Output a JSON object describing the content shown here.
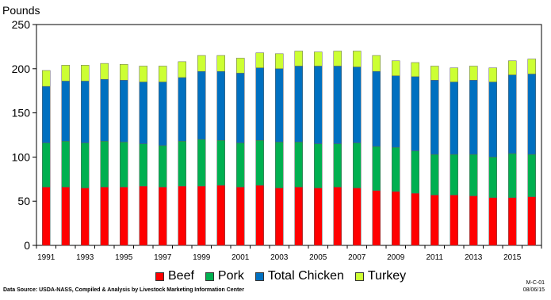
{
  "chart_data": {
    "type": "bar",
    "stacked": true,
    "ylabel": "Pounds",
    "ylim": [
      0,
      250
    ],
    "yticks": [
      0,
      50,
      100,
      150,
      200,
      250
    ],
    "grid": false,
    "legend_position": "bottom",
    "categories": [
      "1991",
      "1992",
      "1993",
      "1994",
      "1995",
      "1996",
      "1997",
      "1998",
      "1999",
      "2000",
      "2001",
      "2002",
      "2003",
      "2004",
      "2005",
      "2006",
      "2007",
      "2008",
      "2009",
      "2010",
      "2011",
      "2012",
      "2013",
      "2014",
      "2015",
      "2016"
    ],
    "xtick_labels": [
      "1991",
      "1993",
      "1995",
      "1997",
      "1999",
      "2001",
      "2003",
      "2005",
      "2007",
      "2009",
      "2011",
      "2013",
      "2015"
    ],
    "series": [
      {
        "name": "Beef",
        "color": "#ff0000",
        "values": [
          66,
          66,
          65,
          66,
          66,
          67,
          66,
          67,
          67,
          68,
          66,
          68,
          65,
          66,
          65,
          66,
          65,
          62,
          61,
          59,
          57,
          57,
          56,
          54,
          54,
          55
        ]
      },
      {
        "name": "Pork",
        "color": "#00b050",
        "values": [
          50,
          52,
          51,
          52,
          51,
          48,
          47,
          51,
          53,
          51,
          50,
          51,
          52,
          51,
          50,
          49,
          51,
          50,
          50,
          48,
          46,
          46,
          47,
          46,
          50,
          48
        ]
      },
      {
        "name": "Total Chicken",
        "color": "#0070c0",
        "values": [
          64,
          68,
          70,
          70,
          70,
          70,
          72,
          72,
          77,
          78,
          79,
          82,
          83,
          86,
          88,
          88,
          86,
          85,
          81,
          84,
          84,
          82,
          84,
          85,
          89,
          91
        ]
      },
      {
        "name": "Turkey",
        "color": "#ccff33",
        "values": [
          18,
          18,
          18,
          18,
          18,
          18,
          18,
          18,
          18,
          18,
          17,
          17,
          17,
          17,
          16,
          17,
          18,
          18,
          17,
          16,
          16,
          16,
          16,
          16,
          16,
          17
        ]
      }
    ]
  },
  "source_text": "Data Source:  USDA-NASS, Compiled & Analysis by Livestock Marketing Information Center",
  "code_line1": "M-C-01",
  "code_line2": "08/06/15"
}
